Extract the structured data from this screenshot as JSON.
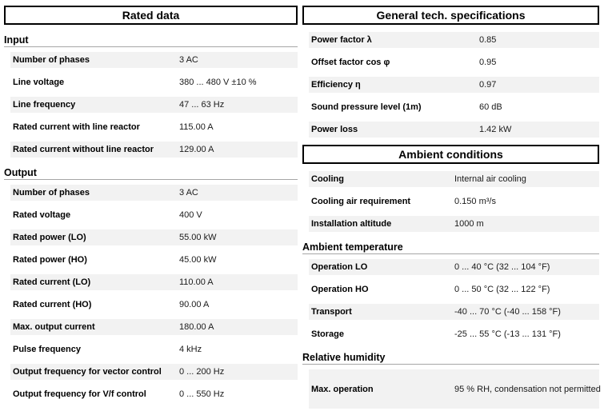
{
  "colors": {
    "row_stripe": "#f2f2f2",
    "heading_rule": "#a6a6a6",
    "header_box_border": "#000000",
    "background": "#ffffff"
  },
  "columns": [
    {
      "panels": [
        {
          "header": "Rated data",
          "sections": [
            {
              "title": "Input",
              "rows": [
                {
                  "label": "Number of phases",
                  "value": "3 AC"
                },
                {
                  "label": "Line voltage",
                  "value": "380 ... 480 V ±10 %"
                },
                {
                  "label": "Line frequency",
                  "value": "47 ... 63 Hz"
                },
                {
                  "label": "Rated current with line reactor",
                  "value": "115.00 A"
                },
                {
                  "label": "Rated current without line reactor",
                  "value": "129.00 A"
                }
              ]
            },
            {
              "title": "Output",
              "rows": [
                {
                  "label": "Number of phases",
                  "value": "3 AC"
                },
                {
                  "label": "Rated voltage",
                  "value": "400 V"
                },
                {
                  "label": "Rated power (LO)",
                  "value": "55.00 kW"
                },
                {
                  "label": "Rated power (HO)",
                  "value": "45.00 kW"
                },
                {
                  "label": "Rated current (LO)",
                  "value": "110.00 A"
                },
                {
                  "label": "Rated current (HO)",
                  "value": "90.00 A"
                },
                {
                  "label": "Max. output current",
                  "value": "180.00 A"
                },
                {
                  "label": "Pulse frequency",
                  "value": "4 kHz"
                },
                {
                  "label": "Output frequency for vector control",
                  "value": "0 ... 200 Hz"
                },
                {
                  "label": "Output frequency for V/f control",
                  "value": "0 ... 550 Hz"
                }
              ]
            }
          ]
        }
      ]
    },
    {
      "panels": [
        {
          "header": "General tech. specifications",
          "sections": [
            {
              "title": "",
              "rows": [
                {
                  "label": "Power factor λ",
                  "value": "0.85"
                },
                {
                  "label": "Offset factor cos φ",
                  "value": "0.95"
                },
                {
                  "label": "Efficiency η",
                  "value": "0.97"
                },
                {
                  "label": "Sound pressure level (1m)",
                  "value": "60 dB"
                },
                {
                  "label": "Power loss",
                  "value": "1.42 kW"
                }
              ]
            }
          ]
        },
        {
          "header": "Ambient conditions",
          "sections": [
            {
              "title": "",
              "rows": [
                {
                  "label": "Cooling",
                  "value": "Internal air cooling"
                },
                {
                  "label": "Cooling air requirement",
                  "value": "0.150 m³/s"
                },
                {
                  "label": "Installation altitude",
                  "value": "1000 m"
                }
              ]
            },
            {
              "title": "Ambient temperature",
              "rows": [
                {
                  "label": "Operation LO",
                  "value": "0 ... 40 °C (32 ... 104 °F)"
                },
                {
                  "label": "Operation HO",
                  "value": "0 ... 50 °C (32 ... 122 °F)"
                },
                {
                  "label": "Transport",
                  "value": "-40 ... 70 °C (-40 ... 158 °F)"
                },
                {
                  "label": "Storage",
                  "value": "-25 ... 55 °C (-13 ... 131 °F)"
                }
              ]
            },
            {
              "title": "Relative humidity",
              "rows": [
                {
                  "label": "Max. operation",
                  "value": "95 % RH, condensation not permitted"
                }
              ]
            }
          ]
        }
      ]
    }
  ]
}
